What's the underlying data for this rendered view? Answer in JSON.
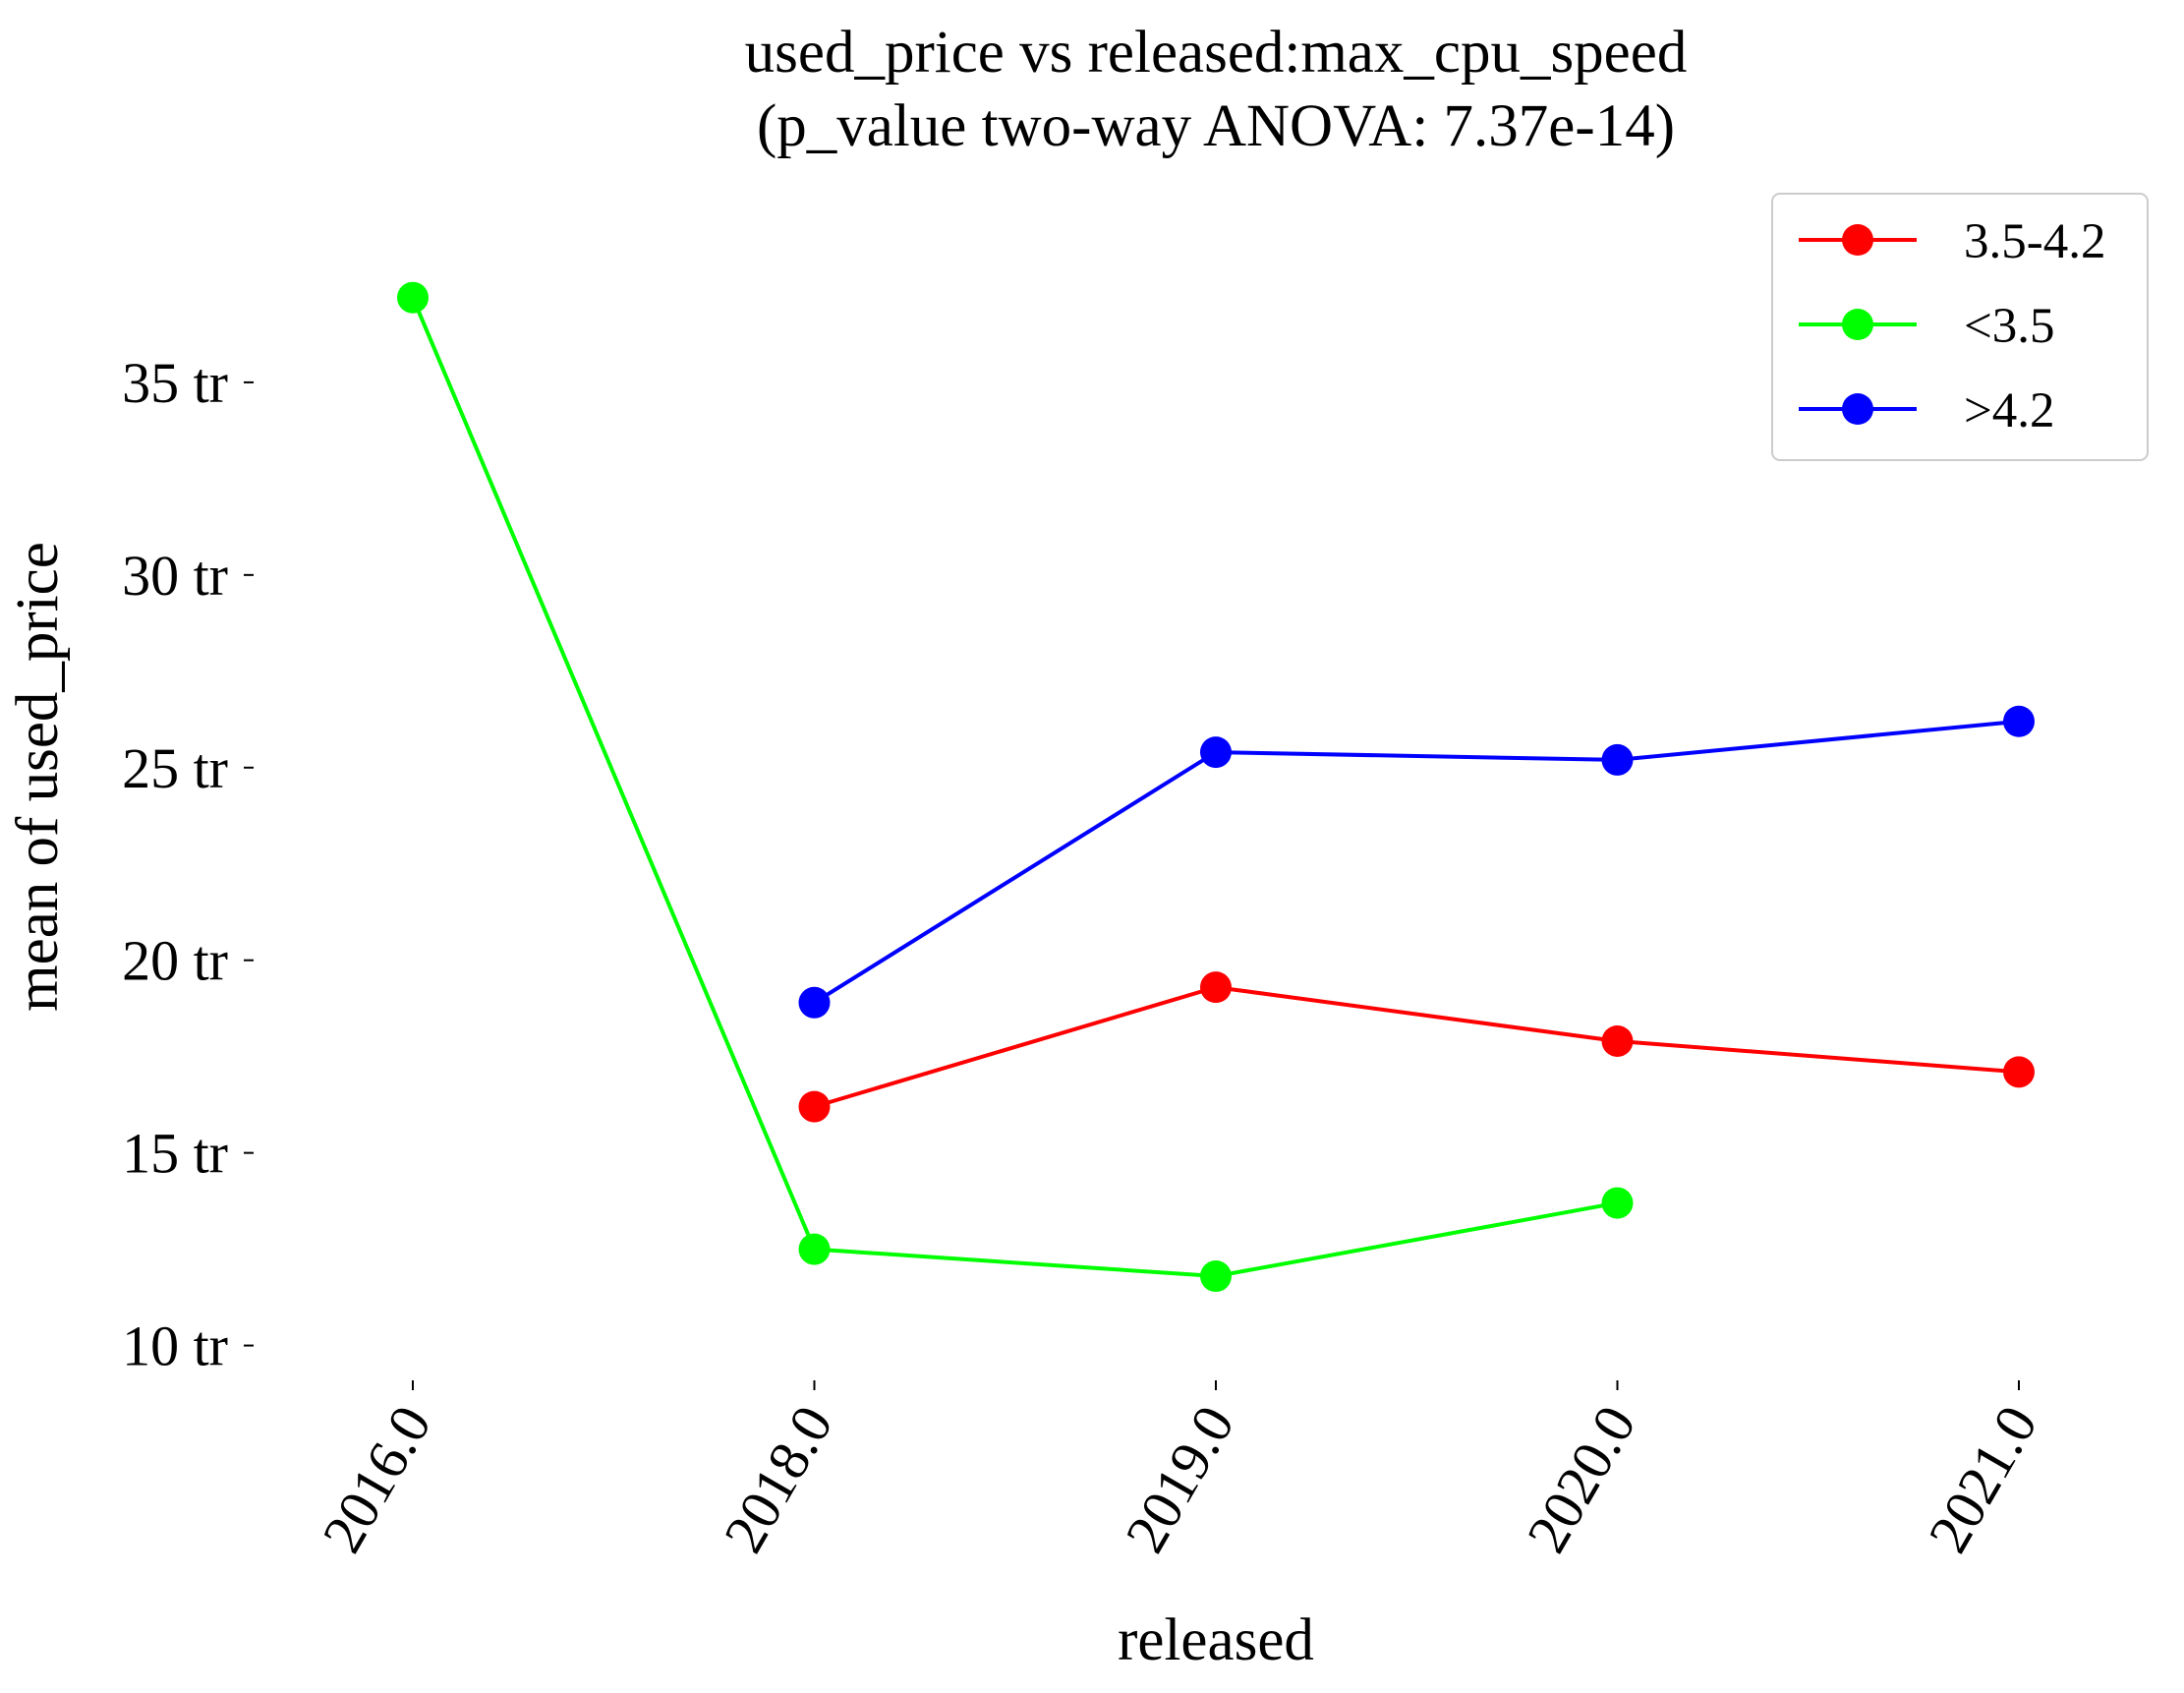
{
  "chart_data": {
    "type": "line",
    "title": "used_price vs released:max_cpu_speed",
    "subtitle": "(p_value two-way ANOVA: 7.37e-14)",
    "xlabel": "released",
    "ylabel": "mean of used_price",
    "categories": [
      "2016.0",
      "2018.0",
      "2019.0",
      "2020.0",
      "2021.0"
    ],
    "yticks": [
      10,
      15,
      20,
      25,
      30,
      35
    ],
    "ytick_labels": [
      "10 tr",
      "15 tr",
      "20 tr",
      "25 tr",
      "30 tr",
      "35 tr"
    ],
    "ylim": [
      9.3,
      38.8
    ],
    "grid": false,
    "legend_position": "top-right",
    "series": [
      {
        "name": "3.5-4.2",
        "color": "#ff0000",
        "values": [
          null,
          16.2,
          19.3,
          17.9,
          17.1
        ]
      },
      {
        "name": "<3.5",
        "color": "#00ff00",
        "values": [
          37.2,
          12.5,
          11.8,
          13.7,
          null
        ]
      },
      {
        "name": ">4.2",
        "color": "#0000ff",
        "values": [
          null,
          18.9,
          25.4,
          25.2,
          26.2
        ]
      }
    ]
  }
}
